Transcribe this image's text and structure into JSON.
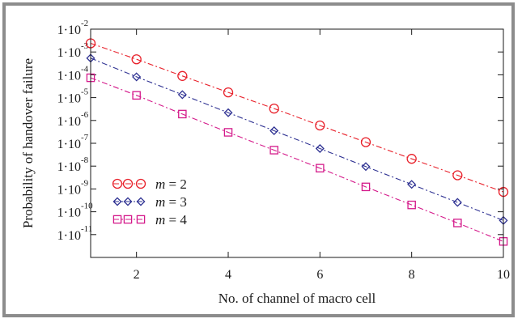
{
  "chart_data": {
    "type": "line",
    "xlabel": "No. of channel of macro cell",
    "ylabel": "Probability of handover failure",
    "xlim": [
      1,
      10
    ],
    "ylim_log10": [
      -12,
      -2
    ],
    "y_scale": "log",
    "grid": false,
    "legend_position": "bottom-left",
    "x_ticks": [
      2,
      4,
      6,
      8,
      10
    ],
    "y_ticks": [
      {
        "mantissa": "1·10",
        "exponent": "-2",
        "value": -2
      },
      {
        "mantissa": "1·10",
        "exponent": "-3",
        "value": -3
      },
      {
        "mantissa": "1·10",
        "exponent": "-4",
        "value": -4
      },
      {
        "mantissa": "1·10",
        "exponent": "-5",
        "value": -5
      },
      {
        "mantissa": "1·10",
        "exponent": "-6",
        "value": -6
      },
      {
        "mantissa": "1·10",
        "exponent": "-7",
        "value": -7
      },
      {
        "mantissa": "1·10",
        "exponent": "-8",
        "value": -8
      },
      {
        "mantissa": "1·10",
        "exponent": "-9",
        "value": -9
      },
      {
        "mantissa": "1·10",
        "exponent": "-10",
        "value": -10
      },
      {
        "mantissa": "1·10",
        "exponent": "-11",
        "value": -11
      }
    ],
    "x": [
      1,
      2,
      3,
      4,
      5,
      6,
      7,
      8,
      9,
      10
    ],
    "series": [
      {
        "name_italic": "m",
        "name_rest": " = 2",
        "marker": "circle",
        "color": "#e8202a",
        "log10_values": [
          -2.62,
          -3.32,
          -4.05,
          -4.77,
          -5.48,
          -6.22,
          -6.95,
          -7.68,
          -8.4,
          -9.13
        ]
      },
      {
        "name_italic": "m",
        "name_rest": " = 3",
        "marker": "diamond",
        "color": "#2e3192",
        "log10_values": [
          -3.27,
          -4.09,
          -4.87,
          -5.66,
          -6.45,
          -7.23,
          -8.02,
          -8.8,
          -9.59,
          -10.38
        ]
      },
      {
        "name_italic": "m",
        "name_rest": " = 4",
        "marker": "square",
        "color": "#d4198a",
        "log10_values": [
          -4.13,
          -4.9,
          -5.72,
          -6.52,
          -7.3,
          -8.09,
          -8.91,
          -9.7,
          -10.49,
          -11.3
        ]
      }
    ]
  }
}
